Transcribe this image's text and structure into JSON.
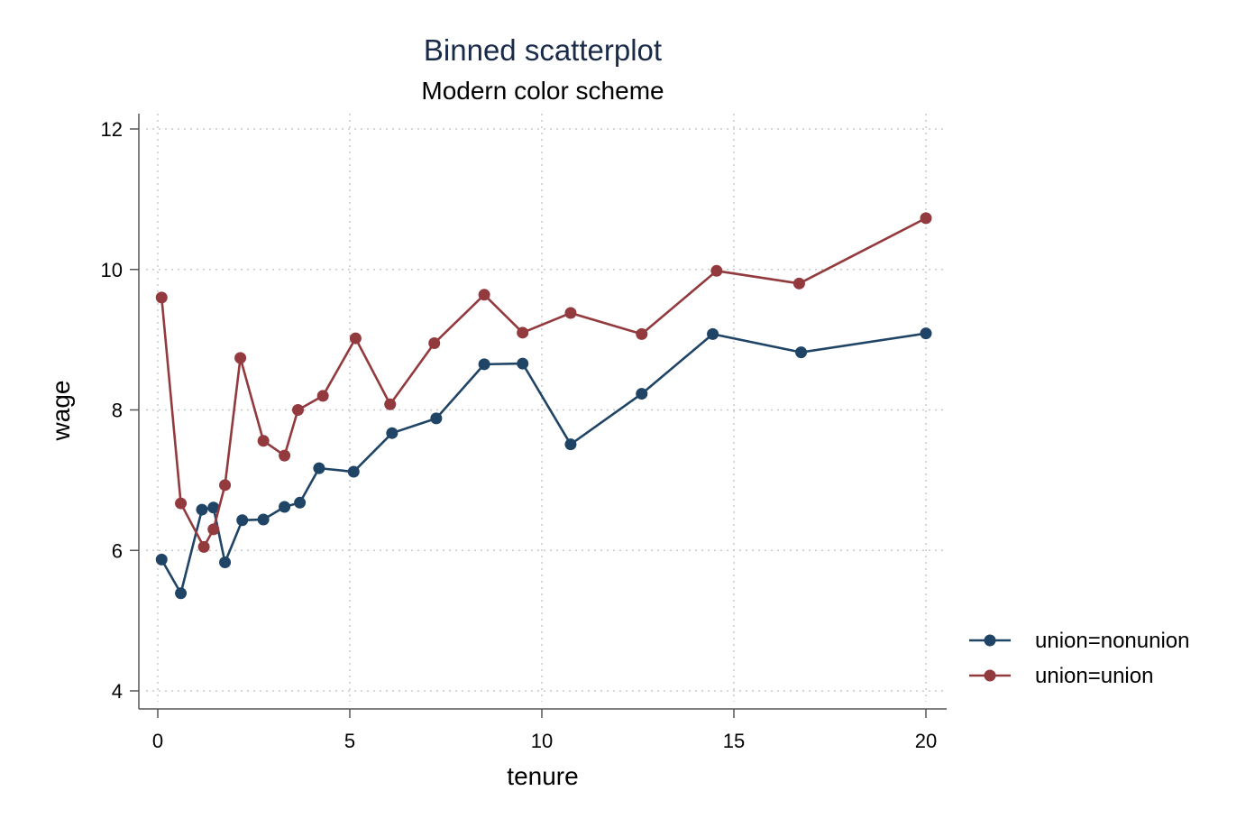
{
  "chart_data": {
    "type": "line",
    "title": "Binned scatterplot",
    "subtitle": "Modern color scheme",
    "xlabel": "tenure",
    "ylabel": "wage",
    "xlim": [
      -0.4,
      20.4
    ],
    "ylim": [
      3.7,
      12.2
    ],
    "xticks": [
      0,
      5,
      10,
      15,
      20
    ],
    "yticks": [
      4,
      6,
      8,
      10,
      12
    ],
    "grid": true,
    "legend_position": "right-bottom",
    "series": [
      {
        "name": "union=nonunion",
        "color": "#1f4466",
        "x": [
          0.1,
          0.6,
          1.15,
          1.45,
          1.75,
          2.2,
          2.75,
          3.3,
          3.7,
          4.2,
          5.1,
          6.1,
          7.25,
          8.5,
          9.5,
          10.75,
          12.6,
          14.45,
          16.75,
          20.0
        ],
        "y": [
          5.87,
          5.39,
          6.58,
          6.61,
          5.83,
          6.43,
          6.44,
          6.62,
          6.68,
          7.17,
          7.12,
          7.67,
          7.88,
          8.65,
          8.66,
          7.51,
          8.23,
          9.08,
          8.82,
          9.09
        ]
      },
      {
        "name": "union=union",
        "color": "#923a3e",
        "x": [
          0.1,
          0.6,
          1.2,
          1.45,
          1.75,
          2.15,
          2.75,
          3.3,
          3.65,
          4.3,
          5.15,
          6.05,
          7.2,
          8.5,
          9.5,
          10.75,
          12.6,
          14.55,
          16.7,
          20.0
        ],
        "y": [
          9.6,
          6.67,
          6.05,
          6.3,
          6.93,
          8.74,
          7.56,
          7.35,
          8.0,
          8.2,
          9.02,
          8.08,
          8.95,
          9.64,
          9.1,
          9.38,
          9.08,
          9.98,
          9.8,
          10.73
        ]
      }
    ]
  }
}
